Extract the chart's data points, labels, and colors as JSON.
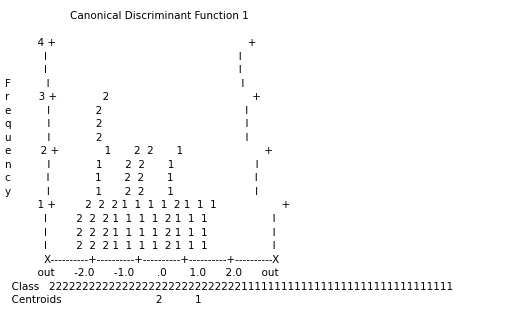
{
  "title": "Canonical Discriminant Function 1",
  "bg_color": "#ffffff",
  "font_family": "Courier New",
  "font_size": 7.5,
  "lines": [
    "                    Canonical Discriminant Function 1                    ",
    "                                                                         ",
    "          4 +                                                           +",
    "            I                                                           I",
    "            I                                                           I",
    "F           I                                                           I",
    "r         3 +              2                                            +",
    "e           I              2                                            I",
    "q           I              2                                            I",
    "u           I              2                                            I",
    "e         2 +              1       2  2       1                         +",
    "n           I              1       2  2       1                         I",
    "c           I              1       2  2       1                         I",
    "y           I              1       2  2       1                         I",
    "          1 +         2  2  2 1  1  1  1  2 1  1  1                    +",
    "            I         2  2  2 1  1  1  1  2 1  1  1                    I",
    "            I         2  2  2 1  1  1  1  2 1  1  1                    I",
    "            I         2  2  2 1  1  1  1  2 1  1  1                    I",
    "            X----------+----------+----------+----------+----------X",
    "          out      -2.0      -1.0       .0       1.0      2.0      out",
    "  Class   2222222222222222222222222222211111111111111111111111111111111",
    "  Centroids                             2          1"
  ]
}
